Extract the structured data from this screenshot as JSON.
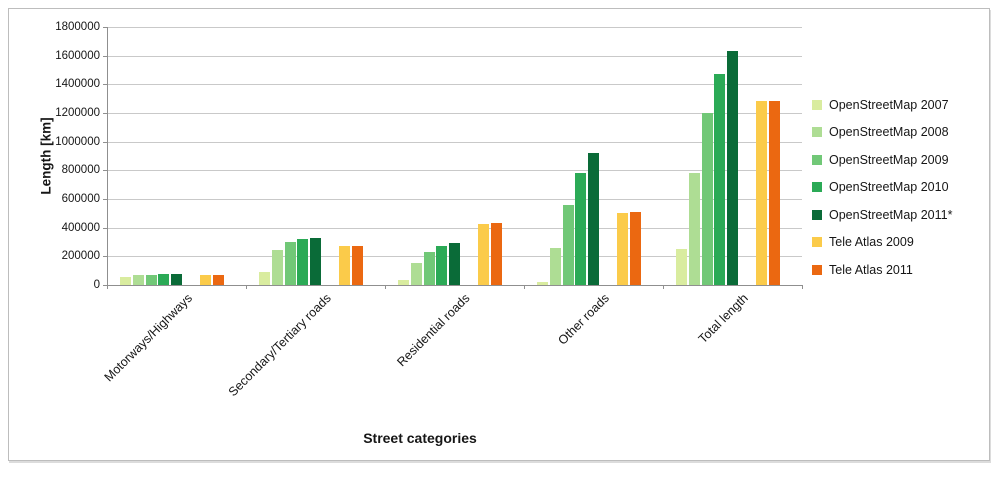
{
  "figure": {
    "background": "#ffffff",
    "frame_border_color": "#bdbdbd"
  },
  "colors": {
    "gridline": "#c9c9c9",
    "axis": "#8f8f8f",
    "text": "#161616"
  },
  "chart_data": {
    "type": "bar",
    "title": "",
    "xlabel": "Street categories",
    "ylabel": "Length [km]",
    "ylim": [
      0,
      1800000
    ],
    "ytick_step": 200000,
    "yticks": [
      "0",
      "200000",
      "400000",
      "600000",
      "800000",
      "1000000",
      "1200000",
      "1400000",
      "1600000",
      "1800000"
    ],
    "grid": "horizontal",
    "legend_position": "right",
    "categories": [
      "Motorways/Highways",
      "Secondary/Tertiary roads",
      "Residential roads",
      "Other roads",
      "Total length"
    ],
    "series": [
      {
        "name": "OpenStreetMap 2007",
        "color": "#d9ec9f",
        "values": [
          55000,
          90000,
          35000,
          20000,
          250000
        ]
      },
      {
        "name": "OpenStreetMap 2008",
        "color": "#aedd94",
        "values": [
          70000,
          245000,
          150000,
          260000,
          780000
        ]
      },
      {
        "name": "OpenStreetMap 2009",
        "color": "#71c877",
        "values": [
          73000,
          300000,
          230000,
          560000,
          1200000
        ]
      },
      {
        "name": "OpenStreetMap 2010",
        "color": "#2baa56",
        "values": [
          76000,
          320000,
          270000,
          780000,
          1470000
        ]
      },
      {
        "name": "OpenStreetMap 2011*",
        "color": "#0a6b38",
        "values": [
          78000,
          330000,
          290000,
          920000,
          1635000
        ]
      },
      {
        "name": "Tele Atlas 2009",
        "color": "#fbcb4a",
        "values": [
          72000,
          270000,
          425000,
          505000,
          1285000
        ]
      },
      {
        "name": "Tele Atlas 2011",
        "color": "#eb6811",
        "values": [
          70000,
          270000,
          430000,
          510000,
          1285000
        ]
      }
    ]
  }
}
